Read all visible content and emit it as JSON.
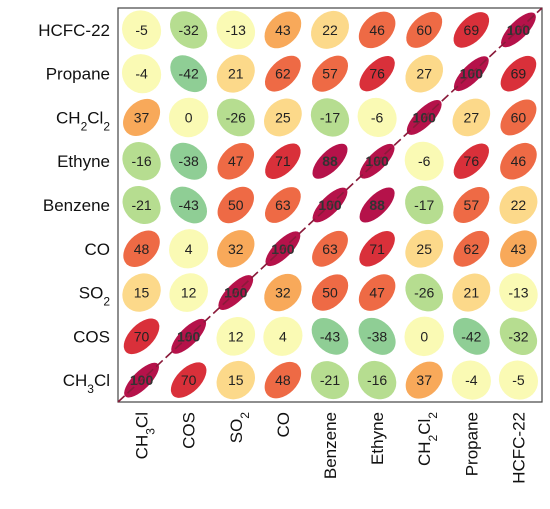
{
  "chart_data": {
    "type": "heatmap",
    "title": "",
    "variables": [
      {
        "parts": [
          {
            "t": "CH"
          },
          {
            "t": "3",
            "sub": true
          },
          {
            "t": "Cl"
          }
        ]
      },
      {
        "parts": [
          {
            "t": "COS"
          }
        ]
      },
      {
        "parts": [
          {
            "t": "SO"
          },
          {
            "t": "2",
            "sub": true
          }
        ]
      },
      {
        "parts": [
          {
            "t": "CO"
          }
        ]
      },
      {
        "parts": [
          {
            "t": "Benzene"
          }
        ]
      },
      {
        "parts": [
          {
            "t": "Ethyne"
          }
        ]
      },
      {
        "parts": [
          {
            "t": "CH"
          },
          {
            "t": "2",
            "sub": true
          },
          {
            "t": "Cl"
          },
          {
            "t": "2",
            "sub": true
          }
        ]
      },
      {
        "parts": [
          {
            "t": "Propane"
          }
        ]
      },
      {
        "parts": [
          {
            "t": "HCFC-22"
          }
        ]
      }
    ],
    "row_order_top_to_bottom": [
      8,
      7,
      6,
      5,
      4,
      3,
      2,
      1,
      0
    ],
    "column_order_left_to_right": [
      0,
      1,
      2,
      3,
      4,
      5,
      6,
      7,
      8
    ],
    "correlation_matrix": [
      [
        100,
        70,
        15,
        48,
        -21,
        -16,
        37,
        -4,
        -5
      ],
      [
        70,
        100,
        12,
        4,
        -43,
        -38,
        0,
        -42,
        -32
      ],
      [
        15,
        12,
        100,
        32,
        50,
        47,
        -26,
        21,
        -13
      ],
      [
        48,
        4,
        32,
        100,
        63,
        71,
        25,
        62,
        43
      ],
      [
        -21,
        -43,
        50,
        63,
        100,
        88,
        -17,
        57,
        22
      ],
      [
        -16,
        -38,
        47,
        71,
        88,
        100,
        -6,
        76,
        46
      ],
      [
        37,
        0,
        -26,
        25,
        -17,
        -6,
        100,
        27,
        60
      ],
      [
        -4,
        -42,
        21,
        62,
        57,
        76,
        27,
        100,
        69
      ],
      [
        -5,
        -32,
        -13,
        43,
        22,
        46,
        60,
        69,
        100
      ]
    ],
    "value_range": [
      -100,
      100
    ],
    "colors": {
      "strong_negative": "#8fce95",
      "negative": "#b6dd90",
      "neutral": "#fafab4",
      "low_positive": "#fcd98a",
      "mid_positive": "#f8a95a",
      "positive": "#ee6a45",
      "high_positive": "#d9303a",
      "very_high": "#b5124a",
      "diagonal_line": "#8a1a3a",
      "frame": "#444444"
    },
    "diagonal_line": true,
    "grid": false,
    "legend": "none"
  }
}
